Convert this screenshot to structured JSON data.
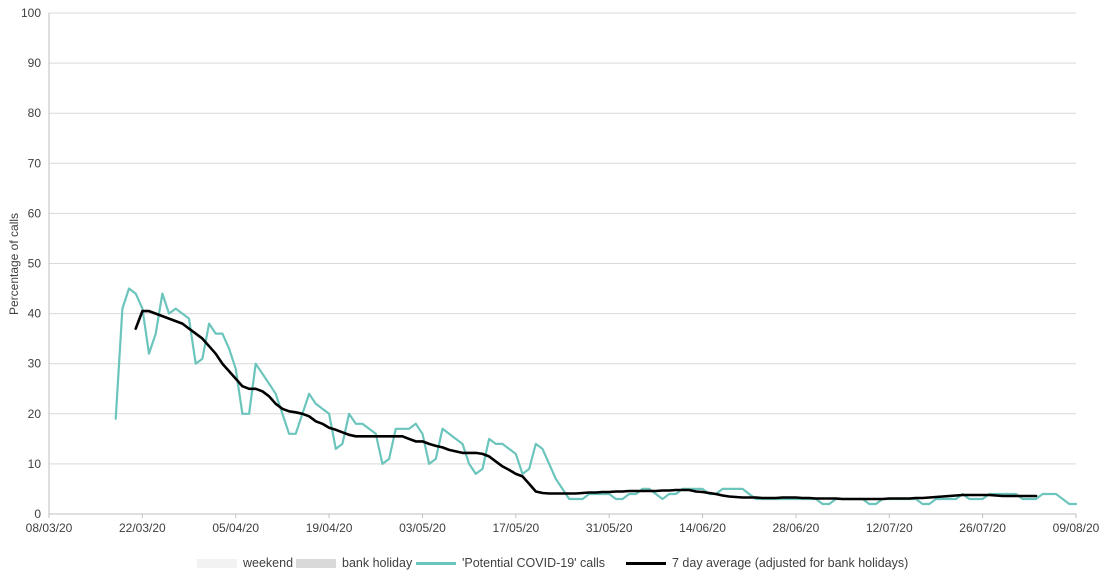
{
  "chart_data": {
    "type": "line",
    "title": "",
    "xlabel": "",
    "ylabel": "Percentage of calls",
    "ylim": [
      0,
      100
    ],
    "yticks": [
      0,
      10,
      20,
      30,
      40,
      50,
      60,
      70,
      80,
      90,
      100
    ],
    "x_tick_labels": [
      "08/03/20",
      "22/03/20",
      "05/04/20",
      "19/04/20",
      "03/05/20",
      "17/05/20",
      "31/05/20",
      "14/06/20",
      "28/06/20",
      "12/07/20",
      "26/07/20",
      "09/08/20"
    ],
    "x_start": "08/03/20",
    "x_end": "09/08/20",
    "grid": true,
    "legend_position": "bottom",
    "legend": [
      {
        "label": "weekend",
        "kind": "box",
        "color": "#f2f2f2"
      },
      {
        "label": "bank holiday",
        "kind": "box",
        "color": "#d9d9d9"
      },
      {
        "label": "'Potential COVID-19' calls",
        "kind": "line",
        "color": "#6cc5bc"
      },
      {
        "label": "7 day average (adjusted for bank holidays)",
        "kind": "line",
        "color": "#000000"
      }
    ],
    "series": [
      {
        "name": "'Potential COVID-19' calls",
        "color": "#6cc5bc",
        "start_date": "18/03/20",
        "values": [
          19,
          41,
          45,
          44,
          41,
          32,
          36,
          44,
          40,
          41,
          40,
          39,
          30,
          31,
          38,
          36,
          36,
          33,
          29,
          20,
          20,
          30,
          28,
          26,
          24,
          20,
          16,
          16,
          20,
          24,
          22,
          21,
          20,
          13,
          14,
          20,
          18,
          18,
          17,
          16,
          10,
          11,
          17,
          17,
          17,
          18,
          16,
          10,
          11,
          17,
          16,
          15,
          14,
          10,
          8,
          9,
          15,
          14,
          14,
          13,
          12,
          8,
          9,
          14,
          13,
          10,
          7,
          5,
          3,
          3,
          3,
          4,
          4,
          4,
          4,
          3,
          3,
          4,
          4,
          5,
          5,
          4,
          3,
          4,
          4,
          5,
          5,
          5,
          5,
          4,
          4,
          5,
          5,
          5,
          5,
          4,
          3,
          3,
          3,
          3,
          3,
          3,
          3,
          3,
          3,
          3,
          2,
          2,
          3,
          3,
          3,
          3,
          3,
          2,
          2,
          3,
          3,
          3,
          3,
          3,
          3,
          2,
          2,
          3,
          3,
          3,
          3,
          4,
          3,
          3,
          3,
          4,
          4,
          4,
          4,
          4,
          3,
          3,
          3,
          4,
          4,
          4,
          3,
          2,
          2
        ]
      },
      {
        "name": "7 day average (adjusted for bank holidays)",
        "color": "#000000",
        "start_date": "21/03/20",
        "values": [
          37,
          40.5,
          40.5,
          40,
          39.5,
          39,
          38.5,
          38,
          37,
          36,
          35,
          33.5,
          32,
          30,
          28.5,
          27,
          25.5,
          25,
          25,
          24.5,
          23.5,
          22,
          21,
          20.5,
          20.3,
          20,
          19.5,
          18.5,
          18,
          17.2,
          16.8,
          16.3,
          15.8,
          15.5,
          15.5,
          15.5,
          15.5,
          15.5,
          15.5,
          15.5,
          15.5,
          15,
          14.5,
          14.5,
          14,
          13.6,
          13.3,
          12.8,
          12.5,
          12.2,
          12.2,
          12.2,
          12,
          11.5,
          10.5,
          9.5,
          8.8,
          8,
          7.5,
          6,
          4.5,
          4.2,
          4.1,
          4.1,
          4.1,
          4.1,
          4.1,
          4.2,
          4.3,
          4.3,
          4.4,
          4.4,
          4.5,
          4.5,
          4.6,
          4.6,
          4.6,
          4.6,
          4.6,
          4.7,
          4.7,
          4.8,
          4.8,
          4.8,
          4.5,
          4.4,
          4.2,
          4,
          3.7,
          3.5,
          3.4,
          3.3,
          3.3,
          3.3,
          3.2,
          3.2,
          3.2,
          3.3,
          3.3,
          3.3,
          3.2,
          3.2,
          3.1,
          3.1,
          3.1,
          3.1,
          3,
          3,
          3,
          3,
          3,
          3,
          3,
          3.1,
          3.1,
          3.1,
          3.1,
          3.2,
          3.2,
          3.3,
          3.4,
          3.5,
          3.6,
          3.7,
          3.8,
          3.8,
          3.8,
          3.8,
          3.8,
          3.7,
          3.6,
          3.6,
          3.6,
          3.6,
          3.6,
          3.6
        ]
      }
    ]
  }
}
